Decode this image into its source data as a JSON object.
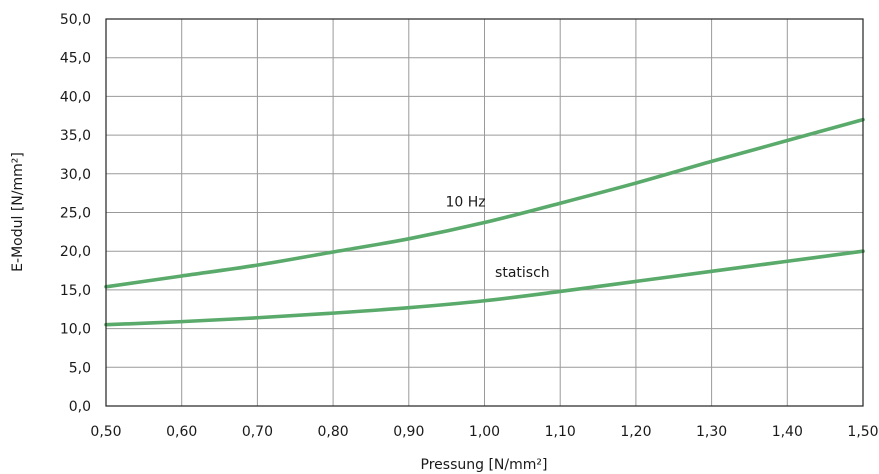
{
  "chart_data": {
    "type": "line",
    "title": "",
    "xlabel": "Pressung [N/mm²]",
    "ylabel": "E-Modul [N/mm²]",
    "xlim": [
      0.5,
      1.5
    ],
    "ylim": [
      0,
      50
    ],
    "grid": true,
    "legend": "none",
    "line_color": "#5aaa6b",
    "x_ticks": [
      "0,50",
      "0,60",
      "0,70",
      "0,80",
      "0,90",
      "1,00",
      "1,10",
      "1,20",
      "1,30",
      "1,40",
      "1,50"
    ],
    "y_ticks": [
      "0,0",
      "5,0",
      "10,0",
      "15,0",
      "20,0",
      "25,0",
      "30,0",
      "35,0",
      "40,0",
      "45,0",
      "50,0"
    ],
    "x": [
      0.5,
      0.6,
      0.7,
      0.8,
      0.9,
      1.0,
      1.1,
      1.2,
      1.3,
      1.4,
      1.5
    ],
    "series": [
      {
        "name": "10 Hz",
        "values": [
          15.4,
          16.8,
          18.2,
          19.9,
          21.6,
          23.7,
          26.2,
          28.8,
          31.6,
          34.3,
          37.0
        ]
      },
      {
        "name": "statisch",
        "values": [
          10.5,
          10.9,
          11.4,
          12.0,
          12.7,
          13.6,
          14.8,
          16.1,
          17.4,
          18.7,
          20.0
        ]
      }
    ]
  }
}
